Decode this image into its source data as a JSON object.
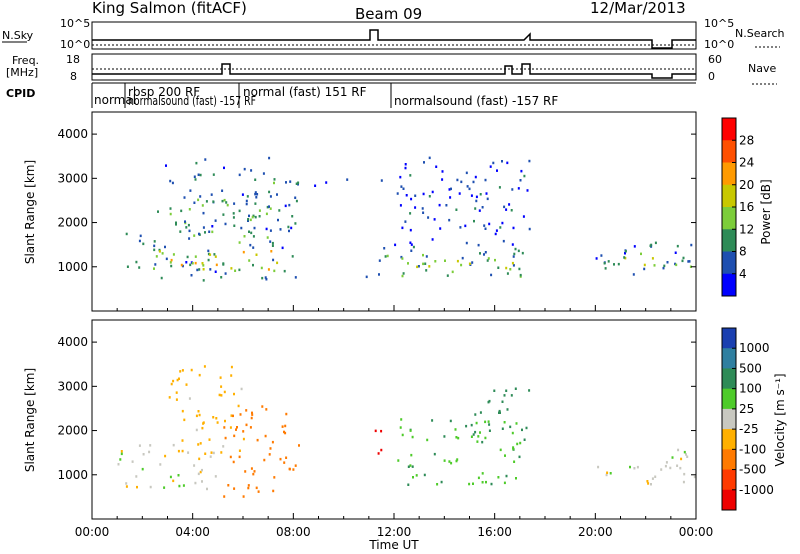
{
  "header": {
    "title_left": "King Salmon (fitACF)",
    "title_center": "Beam 09",
    "title_right": "12/Mar/2013"
  },
  "strips": {
    "nsky_label": "N.Sky",
    "nsearch_label": "N.Search",
    "nsky_ticks": [
      "10^5",
      "10^0"
    ],
    "nsearch_ticks": [
      "10^5",
      "10^0"
    ],
    "freq_label_1": "Freq.",
    "freq_label_2": "[MHz]",
    "freq_ticks": [
      "18",
      "8"
    ],
    "nave_label": "Nave",
    "nave_ticks": [
      "60",
      "0"
    ],
    "cpid_label": "CPID",
    "cpid_segments": [
      "normal",
      "rbsp 200 RF",
      "normalsound (fast) -157 RF",
      "normal (fast) 151 RF",
      "normalsound (fast) -157 RF"
    ]
  },
  "power_panel": {
    "ylabel": "Slant Range [km]",
    "colorbar_label": "Power [dB]",
    "colorbar_ticks": [
      "28",
      "24",
      "20",
      "16",
      "12",
      "8",
      "4"
    ],
    "colorbar_colors": [
      "#ff0000",
      "#ff5000",
      "#ff9a00",
      "#c8c800",
      "#7ccd3a",
      "#2e8b57",
      "#1e4fb0",
      "#0000ff"
    ]
  },
  "velocity_panel": {
    "ylabel": "Slant Range [km]",
    "colorbar_label": "Velocity [m s⁻¹]",
    "colorbar_ticks": [
      "1000",
      "500",
      "100",
      "25",
      "-25",
      "-100",
      "-500",
      "-1000"
    ],
    "colorbar_colors": [
      "#1a3fb0",
      "#2f7fa0",
      "#2e8b57",
      "#4ecb2a",
      "#c8c8c0",
      "#ffb000",
      "#ff7a00",
      "#ff3a00",
      "#ee0000"
    ]
  },
  "xaxis": {
    "label": "Time UT",
    "ticks": [
      "00:00",
      "04:00",
      "08:00",
      "12:00",
      "16:00",
      "20:00",
      "00:00"
    ]
  },
  "chart_data": {
    "type": "heatmap",
    "x_range_hours": [
      0,
      24
    ],
    "y_range_km": [
      0,
      4500
    ],
    "yticks": [
      1000,
      2000,
      3000,
      4000
    ],
    "power_blobs": [
      {
        "t0": 1.2,
        "t1": 2.0,
        "r0": 800,
        "r1": 1900,
        "val": 12
      },
      {
        "t0": 2.4,
        "t1": 8.2,
        "r0": 700,
        "r1": 3500,
        "val": 12
      },
      {
        "t0": 2.5,
        "t1": 7.5,
        "r0": 850,
        "r1": 1400,
        "val": 22
      },
      {
        "t0": 3.2,
        "t1": 7.0,
        "r0": 1700,
        "r1": 2600,
        "val": 14
      },
      {
        "t0": 8.8,
        "t1": 11.5,
        "r0": 2800,
        "r1": 3000,
        "val": 6
      },
      {
        "t0": 10.8,
        "t1": 17.5,
        "r0": 800,
        "r1": 1500,
        "val": 12
      },
      {
        "t0": 12.0,
        "t1": 17.0,
        "r0": 950,
        "r1": 1250,
        "val": 22
      },
      {
        "t0": 12.0,
        "t1": 17.5,
        "r0": 1500,
        "r1": 3500,
        "val": 8
      },
      {
        "t0": 20.0,
        "t1": 24.0,
        "r0": 800,
        "r1": 1600,
        "val": 12
      },
      {
        "t0": 20.0,
        "t1": 24.0,
        "r0": 950,
        "r1": 1250,
        "val": 18
      }
    ],
    "velocity_blobs": [
      {
        "t0": 1.0,
        "t1": 5.0,
        "r0": 700,
        "r1": 1800,
        "val": 0
      },
      {
        "t0": 3.0,
        "t1": 6.0,
        "r0": 1500,
        "r1": 3500,
        "val": -60
      },
      {
        "t0": 5.2,
        "t1": 8.2,
        "r0": 500,
        "r1": 2600,
        "val": -300
      },
      {
        "t0": 11.0,
        "t1": 11.6,
        "r0": 1300,
        "r1": 2100,
        "val": -900
      },
      {
        "t0": 12.0,
        "t1": 17.0,
        "r0": 800,
        "r1": 2300,
        "val": 80
      },
      {
        "t0": 15.0,
        "t1": 17.5,
        "r0": 1800,
        "r1": 3000,
        "val": 200
      },
      {
        "t0": 20.0,
        "t1": 24.0,
        "r0": 800,
        "r1": 1600,
        "val": 0
      }
    ]
  }
}
